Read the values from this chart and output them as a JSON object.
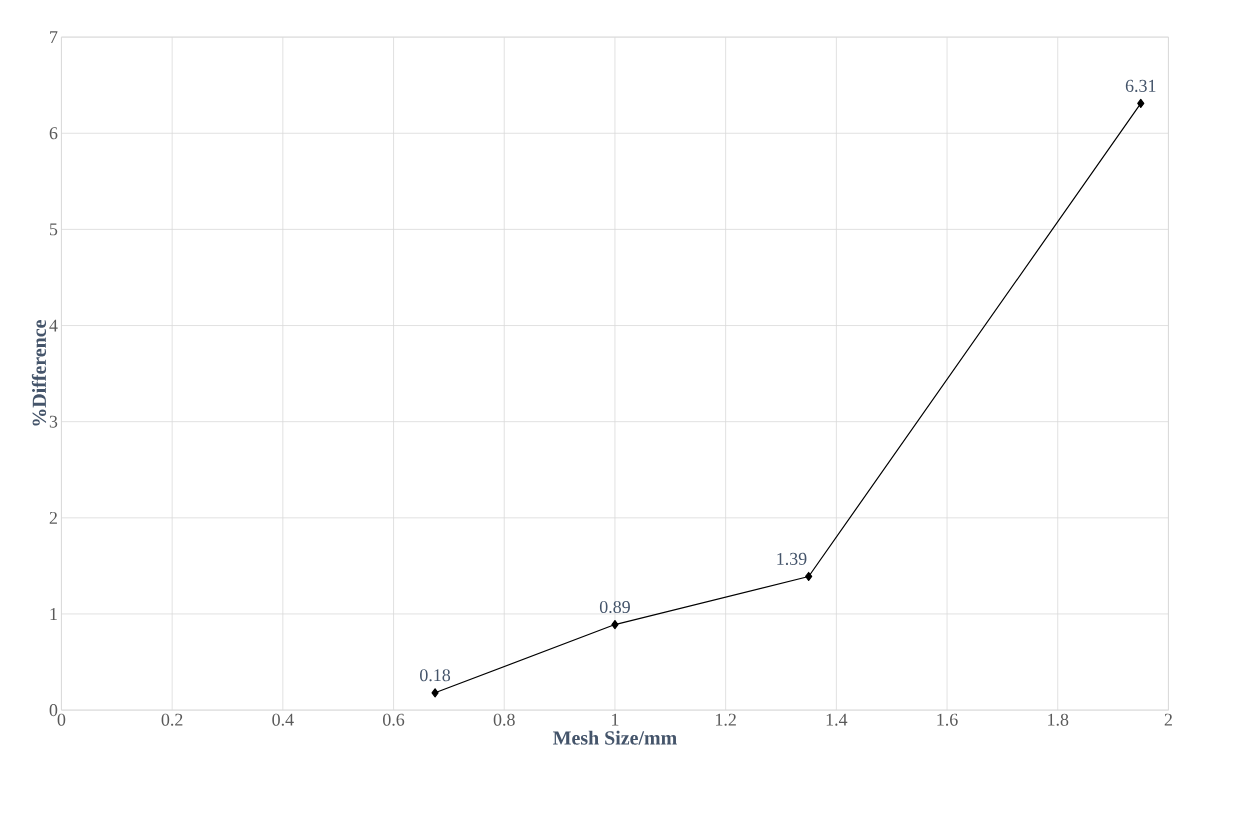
{
  "chart_data": {
    "type": "line",
    "xlabel": "Mesh Size/mm",
    "ylabel": "%Difference",
    "x": [
      0.675,
      1.0,
      1.35,
      1.95
    ],
    "series": [
      {
        "color": "#000000",
        "values": [
          0.18,
          0.89,
          1.39,
          6.31
        ]
      }
    ],
    "xlim": [
      0,
      2
    ],
    "xticks": [
      0,
      0.2,
      0.4,
      0.6,
      0.8,
      1,
      1.2,
      1.4,
      1.6,
      1.8,
      2
    ],
    "ylim": [
      0,
      7
    ],
    "yticks": [
      0,
      1,
      2,
      3,
      4,
      5,
      6,
      7
    ],
    "grid": true,
    "marker": "diamond",
    "line_style": "solid",
    "data_labels": true
  }
}
